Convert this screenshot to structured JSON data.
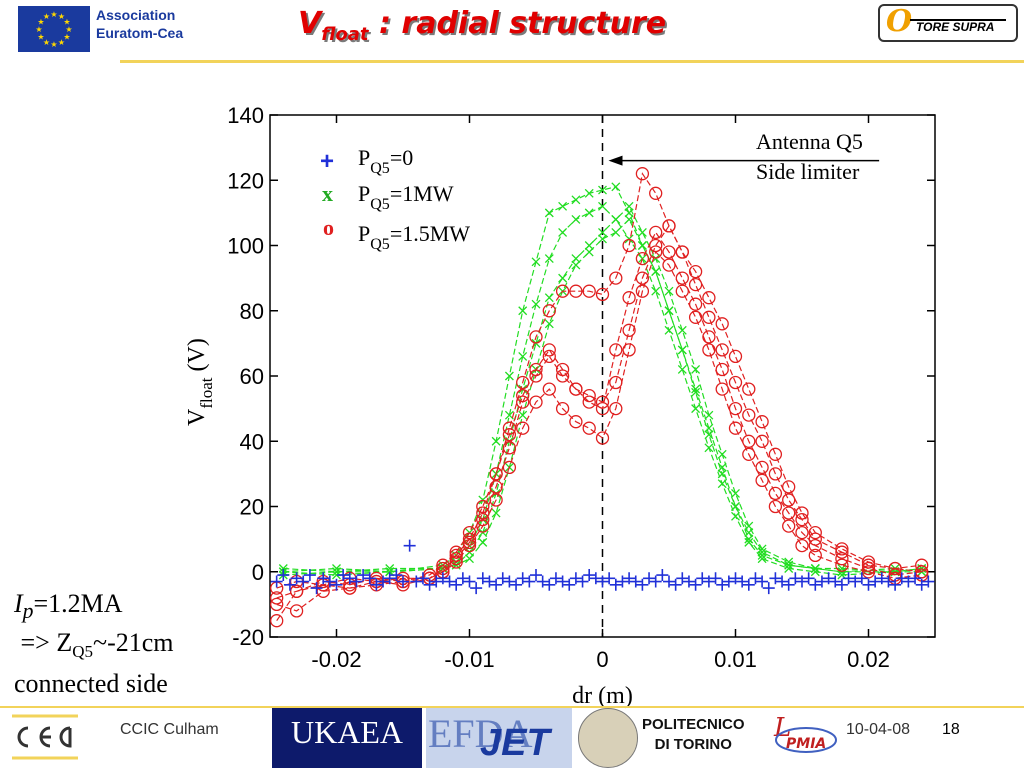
{
  "header": {
    "association_line1": "Association",
    "association_line2": "Euratom-Cea",
    "title_main": "V",
    "title_sub": "float",
    "title_rest": " : radial structure",
    "tore_supra": "TORE SUPRA"
  },
  "note": {
    "ip_symbol": "I",
    "ip_sub": "p",
    "ip_value": "=1.2MA",
    "zq5_prefix": " => Z",
    "zq5_sub": "Q5",
    "zq5_value": "~-21cm",
    "connected": "connected side"
  },
  "footer": {
    "ccic": "CCIC Culham",
    "ukaea": "UKAEA",
    "efda": "EFDA",
    "jet": "JET",
    "polito_line1": "POLITECNICO",
    "polito_line2": "DI TORINO",
    "date": "10-04-08",
    "page": "18"
  },
  "colors": {
    "blue_series": "#2030d8",
    "green_series": "#22dd22",
    "red_series": "#e02020",
    "title_red": "#e00000",
    "accent_yellow": "#f2d35a"
  },
  "chart_data": {
    "type": "scatter",
    "xlabel": "dr (m)",
    "ylabel_main": "V",
    "ylabel_sub": "float",
    "ylabel_unit": " (V)",
    "xlim": [
      -0.025,
      0.025
    ],
    "ylim": [
      -20,
      140
    ],
    "xticks": [
      -0.02,
      -0.01,
      0,
      0.01,
      0.02
    ],
    "xtick_labels": [
      "-0.02",
      "-0.01",
      "0",
      "0.01",
      "0.02"
    ],
    "yticks": [
      -20,
      0,
      20,
      40,
      60,
      80,
      100,
      120,
      140
    ],
    "ytick_labels": [
      "-20",
      "0",
      "20",
      "40",
      "60",
      "80",
      "100",
      "120",
      "140"
    ],
    "grid": false,
    "legend_placement": "top-left",
    "annotation_line1": "Antenna Q5",
    "annotation_line2": "Side limiter",
    "annotation_arrow_tip": [
      0.0,
      126
    ],
    "annotation_arrow_tail": [
      0.0208,
      126
    ],
    "vertical_dashed_line_x": 0.0,
    "series": [
      {
        "name": "P=0",
        "legend_symbol": "+",
        "legend_label_main": "P",
        "legend_label_sub": "Q5",
        "legend_label_value": "=0",
        "marker": "plus",
        "color": "#2030d8",
        "x": [
          -0.0245,
          -0.024,
          -0.0235,
          -0.023,
          -0.0225,
          -0.022,
          -0.0215,
          -0.021,
          -0.0205,
          -0.02,
          -0.0195,
          -0.019,
          -0.0185,
          -0.018,
          -0.0175,
          -0.017,
          -0.0165,
          -0.016,
          -0.0155,
          -0.015,
          -0.0145,
          -0.014,
          -0.0135,
          -0.013,
          -0.0125,
          -0.012,
          -0.0115,
          -0.011,
          -0.0105,
          -0.01,
          -0.0095,
          -0.009,
          -0.0085,
          -0.008,
          -0.0075,
          -0.007,
          -0.0065,
          -0.006,
          -0.0055,
          -0.005,
          -0.0045,
          -0.004,
          -0.0035,
          -0.003,
          -0.0025,
          -0.002,
          -0.0015,
          -0.001,
          -0.0005,
          0.0,
          0.0005,
          0.001,
          0.0015,
          0.002,
          0.0025,
          0.003,
          0.0035,
          0.004,
          0.0045,
          0.005,
          0.0055,
          0.006,
          0.0065,
          0.007,
          0.0075,
          0.008,
          0.0085,
          0.009,
          0.0095,
          0.01,
          0.0105,
          0.011,
          0.0115,
          0.012,
          0.0125,
          0.013,
          0.0135,
          0.014,
          0.0145,
          0.015,
          0.0155,
          0.016,
          0.0165,
          0.017,
          0.0175,
          0.018,
          0.0185,
          0.019,
          0.0195,
          0.02,
          0.0205,
          0.021,
          0.0215,
          0.022,
          0.0225,
          0.023,
          0.0235,
          0.024,
          0.0245
        ],
        "y": [
          -3,
          -1,
          -4,
          -2,
          -3,
          -1,
          -5,
          -2,
          -3,
          -4,
          -1,
          -2,
          -3,
          -1,
          -2,
          -4,
          -3,
          -2,
          -1,
          -3,
          8,
          -3,
          -2,
          -4,
          -3,
          -2,
          -3,
          -4,
          -2,
          -3,
          -5,
          -2,
          -3,
          -4,
          -2,
          -3,
          -4,
          -2,
          -3,
          -1,
          -3,
          -4,
          -2,
          -3,
          -4,
          -2,
          -3,
          -1,
          -2,
          -3,
          -2,
          -4,
          -3,
          -2,
          -3,
          -4,
          -2,
          -3,
          -1,
          -3,
          -4,
          -2,
          -3,
          -4,
          -2,
          -3,
          -2,
          -4,
          -3,
          -2,
          -3,
          -4,
          -2,
          -3,
          -5,
          -2,
          -3,
          -4,
          -2,
          -3,
          -2,
          -4,
          -3,
          -2,
          -3,
          -4,
          -2,
          -3,
          -2,
          -4,
          -3,
          -2,
          -3,
          -4,
          -2,
          -3,
          -2,
          -4,
          -3
        ]
      },
      {
        "name": "P=1MW",
        "legend_symbol": "x",
        "legend_label_main": "P",
        "legend_label_sub": "Q5",
        "legend_label_value": "=1MW",
        "marker": "x",
        "color": "#22dd22",
        "profiles": [
          {
            "x": [
              -0.024,
              -0.02,
              -0.016,
              -0.012,
              -0.011,
              -0.01,
              -0.009,
              -0.008,
              -0.007,
              -0.006,
              -0.005,
              -0.004,
              -0.003,
              -0.002,
              -0.001,
              0.0,
              0.001,
              0.002,
              0.003,
              0.004,
              0.005,
              0.006,
              0.007,
              0.008,
              0.009,
              0.01,
              0.011,
              0.012,
              0.014,
              0.016,
              0.018,
              0.022,
              0.024
            ],
            "y": [
              0,
              1,
              0,
              2,
              5,
              12,
              22,
              40,
              60,
              80,
              95,
              110,
              112,
              114,
              116,
              117,
              118,
              110,
              100,
              92,
              80,
              68,
              55,
              42,
              30,
              20,
              10,
              5,
              2,
              1,
              0,
              0,
              1
            ]
          },
          {
            "x": [
              -0.024,
              -0.02,
              -0.016,
              -0.012,
              -0.011,
              -0.01,
              -0.009,
              -0.008,
              -0.007,
              -0.006,
              -0.005,
              -0.004,
              -0.003,
              -0.002,
              -0.001,
              0.0,
              0.001,
              0.002,
              0.003,
              0.004,
              0.005,
              0.006,
              0.007,
              0.008,
              0.009,
              0.01,
              0.011,
              0.012,
              0.014,
              0.016,
              0.018,
              0.022,
              0.024
            ],
            "y": [
              -1,
              0,
              1,
              1,
              3,
              8,
              16,
              30,
              48,
              66,
              82,
              96,
              104,
              108,
              110,
              112,
              108,
              102,
              96,
              86,
              74,
              62,
              50,
              38,
              27,
              17,
              9,
              4,
              1,
              0,
              -1,
              0,
              0
            ]
          },
          {
            "x": [
              -0.024,
              -0.02,
              -0.016,
              -0.012,
              -0.011,
              -0.01,
              -0.009,
              -0.008,
              -0.007,
              -0.006,
              -0.005,
              -0.004,
              -0.003,
              -0.002,
              -0.001,
              0.0,
              0.001,
              0.002,
              0.003,
              0.004,
              0.005,
              0.006,
              0.007,
              0.008,
              0.009,
              0.01,
              0.011,
              0.012,
              0.014,
              0.016,
              0.018,
              0.022,
              0.024
            ],
            "y": [
              0,
              -1,
              0,
              1,
              2,
              6,
              12,
              24,
              40,
              56,
              70,
              84,
              90,
              96,
              100,
              104,
              108,
              112,
              104,
              96,
              86,
              74,
              62,
              48,
              36,
              24,
              14,
              7,
              3,
              1,
              0,
              1,
              0
            ]
          },
          {
            "x": [
              -0.024,
              -0.02,
              -0.016,
              -0.012,
              -0.011,
              -0.01,
              -0.009,
              -0.008,
              -0.007,
              -0.006,
              -0.005,
              -0.004,
              -0.003,
              -0.002,
              -0.001,
              0.0,
              0.001,
              0.002,
              0.003,
              0.004,
              0.005,
              0.006,
              0.007,
              0.008,
              0.009,
              0.01,
              0.011,
              0.012,
              0.014,
              0.016,
              0.018,
              0.022,
              0.024
            ],
            "y": [
              1,
              0,
              0,
              1,
              2,
              4,
              9,
              18,
              32,
              48,
              62,
              76,
              86,
              94,
              98,
              102,
              104,
              108,
              100,
              92,
              80,
              68,
              56,
              44,
              32,
              20,
              12,
              6,
              2,
              1,
              1,
              0,
              1
            ]
          }
        ]
      },
      {
        "name": "P=1.5MW",
        "legend_symbol": "o",
        "legend_label_main": "P",
        "legend_label_sub": "Q5",
        "legend_label_value": "=1.5MW",
        "marker": "circle",
        "color": "#e02020",
        "profiles": [
          {
            "x": [
              -0.0245,
              -0.023,
              -0.021,
              -0.019,
              -0.017,
              -0.015,
              -0.013,
              -0.012,
              -0.011,
              -0.01,
              -0.009,
              -0.008,
              -0.007,
              -0.006,
              -0.005,
              -0.004,
              -0.003,
              -0.002,
              -0.001,
              0.0,
              0.001,
              0.002,
              0.003,
              0.004,
              0.005,
              0.006,
              0.007,
              0.008,
              0.009,
              0.01,
              0.011,
              0.012,
              0.013,
              0.014,
              0.015,
              0.016,
              0.018,
              0.02,
              0.022,
              0.024
            ],
            "y": [
              -5,
              -3,
              -4,
              -2,
              -3,
              -4,
              -2,
              0,
              5,
              10,
              18,
              30,
              44,
              58,
              72,
              80,
              86,
              86,
              86,
              85,
              90,
              100,
              122,
              116,
              106,
              98,
              88,
              78,
              68,
              58,
              48,
              40,
              30,
              22,
              16,
              10,
              6,
              2,
              1,
              0
            ]
          },
          {
            "x": [
              -0.0245,
              -0.023,
              -0.021,
              -0.019,
              -0.017,
              -0.015,
              -0.013,
              -0.012,
              -0.011,
              -0.01,
              -0.009,
              -0.008,
              -0.007,
              -0.006,
              -0.005,
              -0.004,
              -0.003,
              -0.002,
              -0.001,
              0.0,
              0.001,
              0.002,
              0.003,
              0.004,
              0.005,
              0.006,
              0.007,
              0.008,
              0.009,
              0.01,
              0.011,
              0.012,
              0.013,
              0.014,
              0.015,
              0.016,
              0.018,
              0.02,
              0.022,
              0.024
            ],
            "y": [
              -8,
              -6,
              -4,
              -5,
              -3,
              -2,
              -2,
              1,
              4,
              9,
              16,
              26,
              38,
              52,
              60,
              66,
              60,
              56,
              52,
              50,
              68,
              84,
              96,
              104,
              98,
              90,
              82,
              72,
              62,
              50,
              40,
              32,
              24,
              18,
              12,
              8,
              4,
              1,
              -1,
              0
            ]
          },
          {
            "x": [
              -0.0245,
              -0.023,
              -0.021,
              -0.019,
              -0.017,
              -0.015,
              -0.013,
              -0.012,
              -0.011,
              -0.01,
              -0.009,
              -0.008,
              -0.007,
              -0.006,
              -0.005,
              -0.004,
              -0.003,
              -0.002,
              -0.001,
              0.0,
              0.001,
              0.002,
              0.003,
              0.004,
              0.005,
              0.006,
              0.007,
              0.008,
              0.009,
              0.01,
              0.011,
              0.012,
              0.013,
              0.014,
              0.015,
              0.016,
              0.018,
              0.02,
              0.022,
              0.024
            ],
            "y": [
              -10,
              -12,
              -6,
              -5,
              -4,
              -3,
              -2,
              0,
              3,
              8,
              14,
              22,
              32,
              44,
              52,
              56,
              50,
              46,
              44,
              41,
              50,
              68,
              86,
              98,
              94,
              86,
              78,
              68,
              56,
              44,
              36,
              28,
              20,
              14,
              8,
              5,
              2,
              0,
              -2,
              -1
            ]
          },
          {
            "x": [
              -0.0245,
              -0.023,
              -0.021,
              -0.019,
              -0.017,
              -0.015,
              -0.013,
              -0.012,
              -0.011,
              -0.01,
              -0.009,
              -0.008,
              -0.007,
              -0.006,
              -0.005,
              -0.004,
              -0.003,
              -0.002,
              -0.001,
              0.0,
              0.001,
              0.002,
              0.003,
              0.004,
              0.005,
              0.006,
              0.007,
              0.008,
              0.009,
              0.01,
              0.011,
              0.012,
              0.013,
              0.014,
              0.015,
              0.016,
              0.018,
              0.02,
              0.022,
              0.024
            ],
            "y": [
              -15,
              -6,
              -3,
              -4,
              -2,
              -3,
              -1,
              2,
              6,
              12,
              20,
              30,
              42,
              54,
              62,
              68,
              62,
              56,
              54,
              52,
              58,
              74,
              90,
              100,
              106,
              98,
              92,
              84,
              76,
              66,
              56,
              46,
              36,
              26,
              18,
              12,
              7,
              3,
              1,
              2
            ]
          }
        ]
      }
    ]
  }
}
